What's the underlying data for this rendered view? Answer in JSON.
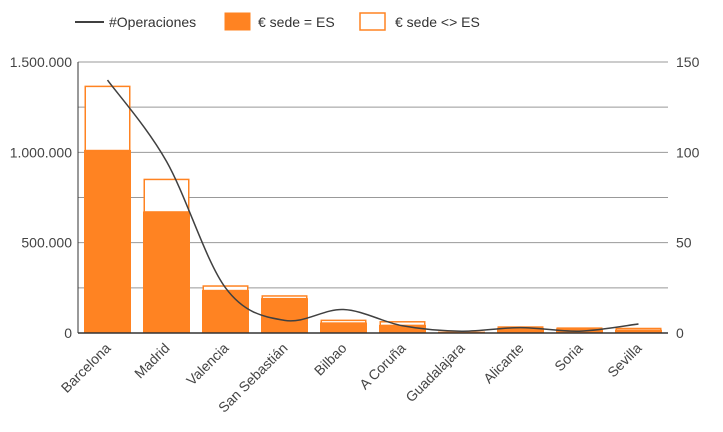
{
  "chart_data": {
    "type": "bar",
    "categories": [
      "Barcelona",
      "Madrid",
      "Valencia",
      "San Sebastián",
      "Bilbao",
      "A Coruña",
      "Guadalajara",
      "Alicante",
      "Soria",
      "Sevilla"
    ],
    "series": [
      {
        "name": "€ sede = ES",
        "kind": "bar",
        "axis": "left",
        "stack": "total",
        "color": "#ff8322",
        "values": [
          1010000,
          670000,
          235000,
          190000,
          55000,
          42000,
          5000,
          25000,
          22000,
          15000
        ]
      },
      {
        "name": "€ sede <> ES",
        "kind": "bar",
        "axis": "left",
        "stack": "total",
        "color": "#ffffff",
        "stroke": "#ff8322",
        "values": [
          355000,
          180000,
          25000,
          15000,
          15000,
          20000,
          0,
          8000,
          5000,
          10000
        ]
      },
      {
        "name": "#Operaciones",
        "kind": "line",
        "axis": "right",
        "color": "#404040",
        "values": [
          140,
          95,
          25,
          7,
          13,
          4,
          1,
          3,
          1,
          5
        ]
      }
    ],
    "y_left": {
      "min": 0,
      "max": 1500000,
      "ticks": [
        "0",
        "500.000",
        "1.000.000",
        "1.500.000"
      ],
      "tick_values": [
        0,
        500000,
        1000000,
        1500000
      ]
    },
    "y_right": {
      "min": 0,
      "max": 150,
      "ticks": [
        "0",
        "50",
        "100",
        "150"
      ],
      "tick_values": [
        0,
        50,
        100,
        150
      ]
    },
    "grid": true,
    "legend_position": "top-left",
    "colors": {
      "accent": "#ff8322",
      "line": "#404040",
      "grid": "#999999",
      "axis": "#333333"
    }
  }
}
